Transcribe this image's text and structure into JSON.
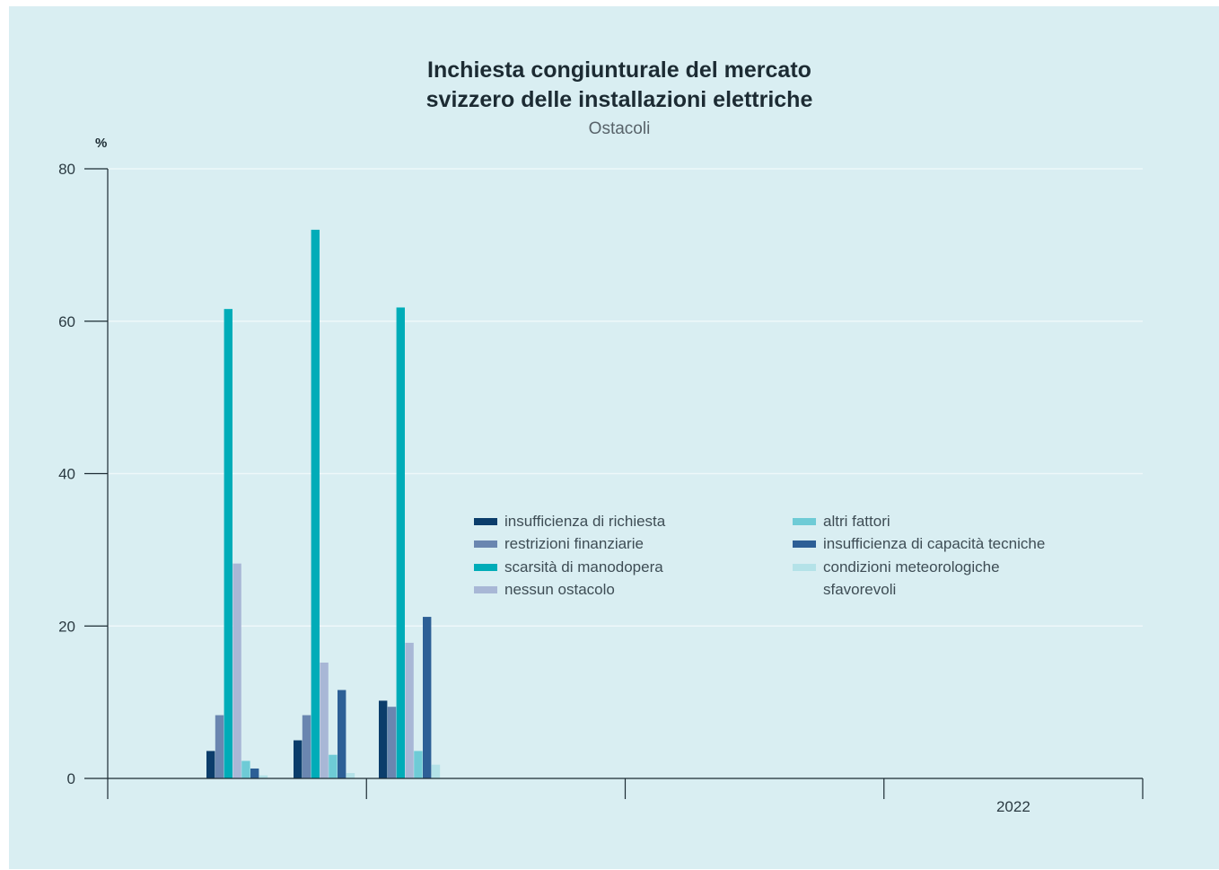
{
  "chart_data": {
    "type": "bar",
    "title_line1": "Inchiesta congiunturale del mercato",
    "title_line2": "svizzero delle installazioni elettriche",
    "subtitle": "Ostacoli",
    "ylabel": "%",
    "ylim": [
      0,
      80
    ],
    "yticks": [
      "0",
      "20",
      "40",
      "60",
      "80"
    ],
    "x_period_labels": [
      "",
      "",
      "",
      "2022"
    ],
    "categories": [
      "",
      "",
      ""
    ],
    "series": [
      {
        "name": "insufficienza di richiesta",
        "color": "#0b3d6b",
        "values": [
          3.6,
          5.0,
          10.2
        ]
      },
      {
        "name": "restrizioni finanziarie",
        "color": "#6a86b0",
        "values": [
          8.3,
          8.3,
          9.4
        ]
      },
      {
        "name": "scarsità di manodopera",
        "color": "#00acb8",
        "values": [
          61.6,
          72.0,
          61.8
        ]
      },
      {
        "name": "nessun ostacolo",
        "color": "#a8b7d6",
        "values": [
          28.2,
          15.2,
          17.8
        ]
      },
      {
        "name": "altri fattori",
        "color": "#6ecbd6",
        "values": [
          2.3,
          3.1,
          3.6
        ]
      },
      {
        "name": "insufficienza di capacità tecniche",
        "color": "#2d5f96",
        "values": [
          1.3,
          11.6,
          21.2
        ]
      },
      {
        "name": "condizioni meteorologiche sfavorevoli",
        "color": "#b4e2e8",
        "values": [
          0.4,
          0.7,
          1.8
        ]
      }
    ],
    "grid": true,
    "legend_position": "center-right"
  }
}
